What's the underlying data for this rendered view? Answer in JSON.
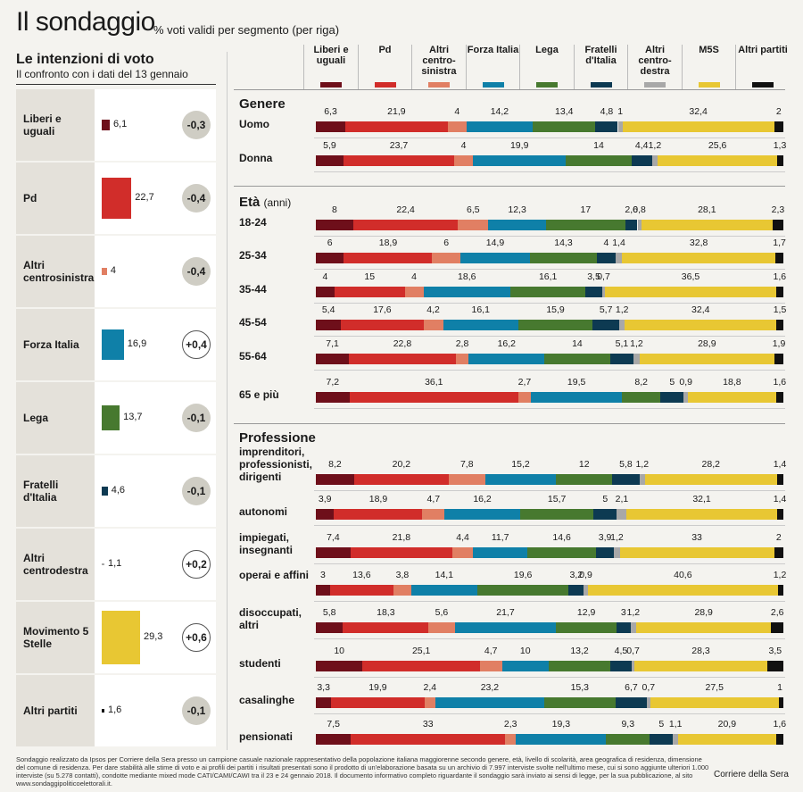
{
  "title": "Il sondaggio",
  "subtitle": "% voti validi per segmento (per riga)",
  "left": {
    "title": "Le intenzioni di voto",
    "subtitle": "Il confronto con i dati del 13 gennaio"
  },
  "colors": {
    "leu": "#6e0f1a",
    "pd": "#d12d2a",
    "altri_cs": "#e17f63",
    "fi": "#0f80a8",
    "lega": "#47792f",
    "fdi": "#0d3a52",
    "altri_cd": "#a8a8a8",
    "m5s": "#e8c733",
    "altri": "#111111"
  },
  "legend": [
    {
      "key": "leu",
      "label": "Liberi e uguali"
    },
    {
      "key": "pd",
      "label": "Pd"
    },
    {
      "key": "altri_cs",
      "label": "Altri centro-sinistra"
    },
    {
      "key": "fi",
      "label": "Forza Italia"
    },
    {
      "key": "lega",
      "label": "Lega"
    },
    {
      "key": "fdi",
      "label": "Fratelli d'Italia"
    },
    {
      "key": "altri_cd",
      "label": "Altri centro-destra"
    },
    {
      "key": "m5s",
      "label": "M5S"
    },
    {
      "key": "altri",
      "label": "Altri partiti"
    }
  ],
  "chart_data": [
    {
      "type": "bar",
      "title": "Le intenzioni di voto",
      "categories": [
        "Liberi e uguali",
        "Pd",
        "Altri centrosinistra",
        "Forza Italia",
        "Lega",
        "Fratelli d'Italia",
        "Altri centrodestra",
        "Movimento 5 Stelle",
        "Altri partiti"
      ],
      "values": [
        6.1,
        22.7,
        4,
        16.9,
        13.7,
        4.6,
        1.1,
        29.3,
        1.6
      ],
      "value_labels": [
        "6,1",
        "22,7",
        "4",
        "16,9",
        "13,7",
        "4,6",
        "1,1",
        "29,3",
        "1,6"
      ],
      "changes": [
        "-0,3",
        "-0,4",
        "-0,4",
        "+0,4",
        "-0,1",
        "-0,1",
        "+0,2",
        "+0,6",
        "-0,1"
      ],
      "colors": [
        "leu",
        "pd",
        "altri_cs",
        "fi",
        "lega",
        "fdi",
        "altri_cd",
        "m5s",
        "altri"
      ],
      "orientation": "horizontal"
    },
    {
      "type": "bar",
      "stacked": true,
      "orientation": "horizontal",
      "series_keys": [
        "leu",
        "pd",
        "altri_cs",
        "fi",
        "lega",
        "fdi",
        "altri_cd",
        "m5s",
        "altri"
      ],
      "sections": [
        {
          "title": "Genere",
          "unit": "",
          "rows": [
            {
              "label": "Uomo",
              "values": [
                6.3,
                21.9,
                4,
                14.2,
                13.4,
                4.8,
                1,
                32.4,
                2
              ],
              "labels": [
                "6,3",
                "21,9",
                "4",
                "14,2",
                "13,4",
                "4,8",
                "1",
                "32,4",
                "2"
              ]
            },
            {
              "label": "Donna",
              "values": [
                5.9,
                23.7,
                4,
                19.9,
                14,
                4.4,
                1.2,
                25.6,
                1.3
              ],
              "labels": [
                "5,9",
                "23,7",
                "4",
                "19,9",
                "14",
                "4,4",
                "1,2",
                "25,6",
                "1,3"
              ]
            }
          ]
        },
        {
          "title": "Età",
          "unit": "(anni)",
          "rows": [
            {
              "label": "18-24",
              "values": [
                8,
                22.4,
                6.5,
                12.3,
                17,
                2.6,
                0.8,
                28.1,
                2.3
              ],
              "labels": [
                "8",
                "22,4",
                "6,5",
                "12,3",
                "17",
                "2,6",
                "0,8",
                "28,1",
                "2,3"
              ]
            },
            {
              "label": "25-34",
              "values": [
                6,
                18.9,
                6,
                14.9,
                14.3,
                4,
                1.4,
                32.8,
                1.7
              ],
              "labels": [
                "6",
                "18,9",
                "6",
                "14,9",
                "14,3",
                "4",
                "1,4",
                "32,8",
                "1,7"
              ]
            },
            {
              "label": "35-44",
              "values": [
                4,
                15,
                4,
                18.6,
                16.1,
                3.5,
                0.7,
                36.5,
                1.6
              ],
              "labels": [
                "4",
                "15",
                "4",
                "18,6",
                "16,1",
                "3,5",
                "0,7",
                "36,5",
                "1,6"
              ]
            },
            {
              "label": "45-54",
              "values": [
                5.4,
                17.6,
                4.2,
                16.1,
                15.9,
                5.7,
                1.2,
                32.4,
                1.5
              ],
              "labels": [
                "5,4",
                "17,6",
                "4,2",
                "16,1",
                "15,9",
                "5,7",
                "1,2",
                "32,4",
                "1,5"
              ]
            },
            {
              "label": "55-64",
              "values": [
                7.1,
                22.8,
                2.8,
                16.2,
                14,
                5.1,
                1.2,
                28.9,
                1.9
              ],
              "labels": [
                "7,1",
                "22,8",
                "2,8",
                "16,2",
                "14",
                "5,1",
                "1,2",
                "28,9",
                "1,9"
              ]
            },
            {
              "label": "65 e più",
              "values": [
                7.2,
                36.1,
                2.7,
                19.5,
                8.2,
                5,
                0.9,
                18.8,
                1.6
              ],
              "labels": [
                "7,2",
                "36,1",
                "2,7",
                "19,5",
                "8,2",
                "5",
                "0,9",
                "18,8",
                "1,6"
              ]
            }
          ]
        },
        {
          "title": "Professione",
          "unit": "",
          "rows": [
            {
              "label": "imprenditori, professionisti, dirigenti",
              "values": [
                8.2,
                20.2,
                7.8,
                15.2,
                12,
                5.8,
                1.2,
                28.2,
                1.4
              ],
              "labels": [
                "8,2",
                "20,2",
                "7,8",
                "15,2",
                "12",
                "5,8",
                "1,2",
                "28,2",
                "1,4"
              ]
            },
            {
              "label": "autonomi",
              "values": [
                3.9,
                18.9,
                4.7,
                16.2,
                15.7,
                5,
                2.1,
                32.1,
                1.4
              ],
              "labels": [
                "3,9",
                "18,9",
                "4,7",
                "16,2",
                "15,7",
                "5",
                "2,1",
                "32,1",
                "1,4"
              ]
            },
            {
              "label": "impiegati, insegnanti",
              "values": [
                7.4,
                21.8,
                4.4,
                11.7,
                14.6,
                3.9,
                1.2,
                33,
                2
              ],
              "labels": [
                "7,4",
                "21,8",
                "4,4",
                "11,7",
                "14,6",
                "3,9",
                "1,2",
                "33",
                "2"
              ]
            },
            {
              "label": "operai e affini",
              "values": [
                3,
                13.6,
                3.8,
                14.1,
                19.6,
                3.2,
                0.9,
                40.6,
                1.2
              ],
              "labels": [
                "3",
                "13,6",
                "3,8",
                "14,1",
                "19,6",
                "3,2",
                "0,9",
                "40,6",
                "1,2"
              ]
            },
            {
              "label": "disoccupati, altri",
              "values": [
                5.8,
                18.3,
                5.6,
                21.7,
                12.9,
                3,
                1.2,
                28.9,
                2.6
              ],
              "labels": [
                "5,8",
                "18,3",
                "5,6",
                "21,7",
                "12,9",
                "3",
                "1,2",
                "28,9",
                "2,6"
              ]
            },
            {
              "label": "studenti",
              "values": [
                10,
                25.1,
                4.7,
                10,
                13.2,
                4.5,
                0.7,
                28.3,
                3.5
              ],
              "labels": [
                "10",
                "25,1",
                "4,7",
                "10",
                "13,2",
                "4,5",
                "0,7",
                "28,3",
                "3,5"
              ]
            },
            {
              "label": "casalinghe",
              "values": [
                3.3,
                19.9,
                2.4,
                23.2,
                15.3,
                6.7,
                0.7,
                27.5,
                1
              ],
              "labels": [
                "3,3",
                "19,9",
                "2,4",
                "23,2",
                "15,3",
                "6,7",
                "0,7",
                "27,5",
                "1"
              ]
            },
            {
              "label": "pensionati",
              "values": [
                7.5,
                33,
                2.3,
                19.3,
                9.3,
                5,
                1.1,
                20.9,
                1.6
              ],
              "labels": [
                "7,5",
                "33",
                "2,3",
                "19,3",
                "9,3",
                "5",
                "1,1",
                "20,9",
                "1,6"
              ]
            }
          ]
        }
      ]
    }
  ],
  "footnote": "Sondaggio realizzato da Ipsos per Corriere della Sera presso un campione casuale nazionale rappresentativo della popolazione italiana maggiorenne secondo genere, età, livello di scolarità, area geografica di residenza, dimensione del comune di residenza. Per dare stabilità alle stime di voto e ai profili dei partiti i risultati presentati sono il prodotto di un'elaborazione basata su un archivio di 7.997 interviste svolte nell'ultimo mese, cui si sono aggiunte ulteriori 1.000 interviste (su 5.278 contatti), condotte mediante mixed mode CATI/CAMI/CAWI tra il 23 e 24 gennaio 2018. Il documento informativo completo riguardante il sondaggio sarà inviato ai sensi di legge, per la sua pubblicazione, al sito www.sondaggipoliticoelettorali.it.",
  "source": "Corriere della Sera"
}
